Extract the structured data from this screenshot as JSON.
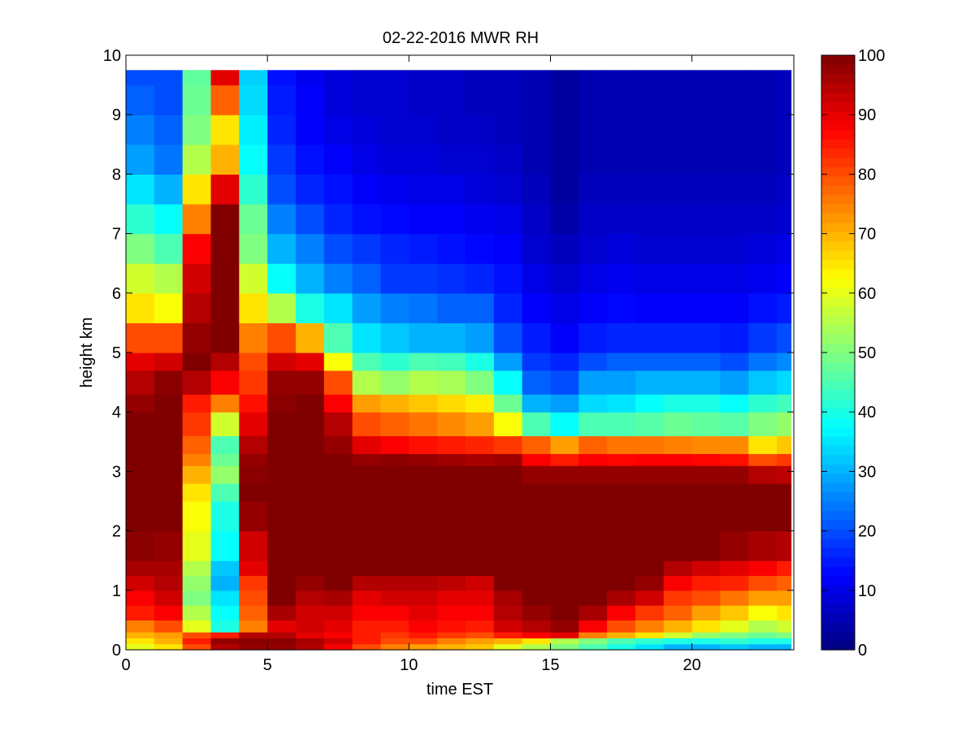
{
  "chart_data": {
    "type": "heatmap",
    "title": "02-22-2016 MWR RH",
    "xlabel": "time EST",
    "ylabel": "height km",
    "xlim": [
      0,
      23.6
    ],
    "ylim": [
      0,
      10
    ],
    "xticks": [
      0,
      5,
      10,
      15,
      20
    ],
    "yticks": [
      0,
      1,
      2,
      3,
      4,
      5,
      6,
      7,
      8,
      9,
      10
    ],
    "colormap": "jet",
    "clim": [
      0,
      100
    ],
    "colorbar_ticks": [
      0,
      10,
      20,
      30,
      40,
      50,
      60,
      70,
      80,
      90,
      100
    ],
    "grid": false,
    "time_hours": [
      0.5,
      1.5,
      2.5,
      3.5,
      4.5,
      5.5,
      6.5,
      7.5,
      8.5,
      9.5,
      10.5,
      11.5,
      12.5,
      13.5,
      14.5,
      15.5,
      16.5,
      17.5,
      18.5,
      19.5,
      20.5,
      21.5,
      22.5,
      23.5
    ],
    "height_profiles_km": [
      0,
      0.1,
      0.2,
      0.3,
      0.5,
      0.75,
      1,
      1.25,
      1.5,
      2,
      2.5,
      2.8,
      3.1,
      3.3,
      3.6,
      4,
      4.3,
      4.7,
      5,
      5.5,
      6,
      6.5,
      7,
      7.5,
      8,
      8.5,
      9,
      9.5,
      9.75
    ],
    "rh_columns": [
      [
        60,
        65,
        70,
        75,
        85,
        88,
        92,
        96,
        99,
        100,
        100,
        100,
        100,
        100,
        100,
        98,
        95,
        90,
        80,
        65,
        58,
        50,
        42,
        35,
        28,
        25,
        22,
        20,
        20
      ],
      [
        65,
        70,
        72,
        80,
        88,
        92,
        95,
        96,
        98,
        100,
        100,
        100,
        100,
        100,
        100,
        100,
        99,
        92,
        80,
        62,
        55,
        45,
        38,
        30,
        24,
        22,
        20,
        20,
        20
      ],
      [
        80,
        85,
        80,
        60,
        55,
        50,
        52,
        55,
        60,
        62,
        65,
        70,
        75,
        78,
        82,
        85,
        95,
        100,
        98,
        95,
        92,
        88,
        75,
        65,
        55,
        50,
        48,
        47,
        47
      ],
      [
        95,
        98,
        85,
        40,
        38,
        35,
        30,
        32,
        38,
        40,
        45,
        52,
        48,
        45,
        58,
        75,
        88,
        95,
        100,
        100,
        100,
        100,
        100,
        90,
        70,
        65,
        78,
        90,
        75
      ],
      [
        98,
        99,
        95,
        75,
        78,
        80,
        82,
        90,
        92,
        98,
        100,
        99,
        98,
        95,
        90,
        86,
        82,
        80,
        75,
        65,
        58,
        50,
        48,
        42,
        38,
        36,
        34,
        33,
        33
      ],
      [
        98,
        99,
        95,
        90,
        96,
        100,
        100,
        100,
        100,
        100,
        100,
        100,
        100,
        100,
        100,
        99,
        98,
        92,
        80,
        55,
        38,
        30,
        25,
        20,
        18,
        16,
        15,
        14,
        13
      ],
      [
        95,
        96,
        90,
        92,
        92,
        95,
        98,
        100,
        100,
        100,
        100,
        100,
        100,
        100,
        100,
        100,
        98,
        90,
        70,
        40,
        30,
        25,
        20,
        16,
        14,
        12,
        12,
        11,
        11
      ],
      [
        88,
        92,
        88,
        90,
        92,
        96,
        100,
        100,
        100,
        100,
        100,
        100,
        100,
        98,
        95,
        88,
        80,
        62,
        45,
        35,
        25,
        20,
        16,
        14,
        12,
        10,
        9,
        9,
        9
      ],
      [
        80,
        85,
        85,
        85,
        88,
        90,
        95,
        100,
        100,
        100,
        100,
        100,
        98,
        90,
        80,
        72,
        55,
        45,
        35,
        28,
        22,
        18,
        14,
        12,
        10,
        9,
        8,
        8,
        8
      ],
      [
        75,
        80,
        82,
        85,
        88,
        92,
        95,
        100,
        100,
        100,
        100,
        100,
        99,
        88,
        78,
        70,
        52,
        42,
        32,
        25,
        18,
        16,
        13,
        11,
        9,
        8,
        8,
        8,
        8
      ],
      [
        72,
        80,
        85,
        88,
        90,
        92,
        95,
        100,
        100,
        100,
        100,
        100,
        98,
        86,
        76,
        68,
        55,
        45,
        30,
        24,
        18,
        15,
        12,
        10,
        9,
        8,
        7,
        7,
        7
      ],
      [
        70,
        75,
        82,
        86,
        88,
        90,
        94,
        100,
        100,
        100,
        100,
        100,
        97,
        85,
        74,
        66,
        54,
        44,
        30,
        22,
        17,
        14,
        12,
        10,
        8,
        7,
        7,
        7,
        7
      ],
      [
        68,
        72,
        80,
        85,
        88,
        90,
        92,
        100,
        100,
        100,
        100,
        100,
        96,
        84,
        72,
        64,
        50,
        40,
        28,
        22,
        16,
        13,
        11,
        9,
        8,
        7,
        6,
        6,
        6
      ],
      [
        60,
        70,
        85,
        92,
        95,
        96,
        100,
        100,
        100,
        100,
        100,
        100,
        97,
        82,
        62,
        48,
        38,
        28,
        20,
        16,
        14,
        12,
        10,
        8,
        7,
        6,
        6,
        6,
        6
      ],
      [
        55,
        65,
        88,
        95,
        98,
        100,
        100,
        100,
        100,
        100,
        100,
        98,
        88,
        78,
        45,
        30,
        22,
        18,
        15,
        12,
        10,
        8,
        7,
        6,
        5,
        5,
        5,
        5,
        5
      ],
      [
        50,
        55,
        90,
        98,
        100,
        100,
        100,
        100,
        100,
        100,
        100,
        98,
        85,
        72,
        38,
        28,
        20,
        16,
        12,
        10,
        8,
        6,
        4,
        3,
        3,
        3,
        3,
        3,
        3
      ],
      [
        45,
        50,
        75,
        88,
        96,
        100,
        100,
        100,
        100,
        100,
        100,
        98,
        88,
        78,
        45,
        34,
        28,
        20,
        15,
        12,
        10,
        8,
        7,
        6,
        5,
        5,
        5,
        5,
        5
      ],
      [
        40,
        45,
        70,
        80,
        88,
        96,
        100,
        100,
        100,
        100,
        100,
        98,
        87,
        76,
        45,
        35,
        28,
        22,
        16,
        13,
        11,
        9,
        7,
        6,
        5,
        5,
        5,
        5,
        5
      ],
      [
        35,
        42,
        65,
        75,
        82,
        92,
        98,
        100,
        100,
        100,
        100,
        98,
        88,
        76,
        46,
        38,
        30,
        22,
        16,
        12,
        10,
        8,
        7,
        6,
        5,
        5,
        5,
        5,
        5
      ],
      [
        30,
        40,
        58,
        70,
        78,
        82,
        88,
        95,
        100,
        100,
        100,
        98,
        88,
        75,
        48,
        40,
        30,
        22,
        16,
        12,
        10,
        8,
        7,
        6,
        5,
        5,
        5,
        5,
        5
      ],
      [
        30,
        40,
        52,
        65,
        72,
        80,
        85,
        92,
        100,
        100,
        100,
        98,
        87,
        74,
        47,
        40,
        30,
        22,
        16,
        12,
        10,
        8,
        7,
        6,
        5,
        5,
        5,
        5,
        5
      ],
      [
        32,
        42,
        50,
        60,
        68,
        76,
        84,
        90,
        98,
        100,
        100,
        98,
        86,
        74,
        46,
        38,
        28,
        20,
        15,
        12,
        10,
        8,
        7,
        6,
        5,
        5,
        5,
        5,
        5
      ],
      [
        30,
        40,
        48,
        55,
        62,
        72,
        80,
        88,
        96,
        100,
        100,
        95,
        80,
        65,
        50,
        42,
        32,
        24,
        18,
        14,
        11,
        9,
        7,
        6,
        5,
        5,
        5,
        5,
        5
      ],
      [
        30,
        40,
        50,
        58,
        65,
        72,
        78,
        85,
        95,
        100,
        100,
        94,
        82,
        68,
        52,
        44,
        34,
        26,
        20,
        15,
        12,
        10,
        8,
        7,
        6,
        6,
        6,
        6,
        6
      ]
    ]
  }
}
